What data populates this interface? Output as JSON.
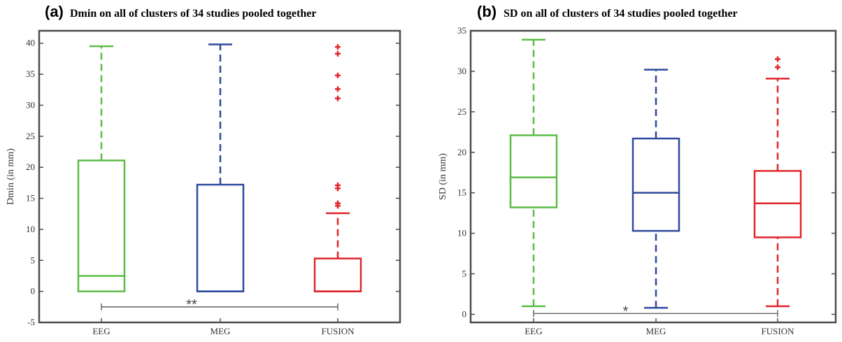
{
  "chart_data": [
    {
      "type": "box",
      "panel_letter": "(a)",
      "title": "Dmin on all of clusters of 34 studies pooled together",
      "xlabel": "",
      "ylabel": "Dmin (in mm)",
      "categories": [
        "EEG",
        "MEG",
        "FUSION"
      ],
      "ylim": [
        -5,
        42
      ],
      "yticks": [
        -5,
        0,
        5,
        10,
        15,
        20,
        25,
        30,
        35,
        40
      ],
      "boxes": [
        {
          "name": "EEG",
          "color": "#5BBD45",
          "whisker_low": 0,
          "q1": 0,
          "median": 2.5,
          "q3": 21.1,
          "whisker_high": 39.5,
          "outliers": []
        },
        {
          "name": "MEG",
          "color": "#2E4A9E",
          "whisker_low": 0,
          "q1": 0,
          "median": 0,
          "q3": 17.2,
          "whisker_high": 39.8,
          "outliers": []
        },
        {
          "name": "FUSION",
          "color": "#E0262B",
          "whisker_low": 0,
          "q1": 0,
          "median": 0,
          "q3": 5.3,
          "whisker_high": 12.6,
          "outliers": [
            13.8,
            14.2,
            16.6,
            17.1,
            31.1,
            32.6,
            34.8,
            38.3,
            39.4
          ]
        }
      ],
      "significance": {
        "from": "EEG",
        "to": "FUSION",
        "label": "**",
        "y": -2.5
      }
    },
    {
      "type": "box",
      "panel_letter": "(b)",
      "title": "SD on all of clusters of 34 studies pooled together",
      "xlabel": "",
      "ylabel": "SD (in mm)",
      "categories": [
        "EEG",
        "MEG",
        "FUSION"
      ],
      "ylim": [
        -1,
        35
      ],
      "yticks": [
        0,
        5,
        10,
        15,
        20,
        25,
        30,
        35
      ],
      "boxes": [
        {
          "name": "EEG",
          "color": "#5BBD45",
          "whisker_low": 1.0,
          "q1": 13.2,
          "median": 16.9,
          "q3": 22.1,
          "whisker_high": 33.9,
          "outliers": []
        },
        {
          "name": "MEG",
          "color": "#2E4A9E",
          "whisker_low": 0.8,
          "q1": 10.3,
          "median": 15.0,
          "q3": 21.7,
          "whisker_high": 30.2,
          "outliers": []
        },
        {
          "name": "FUSION",
          "color": "#E0262B",
          "whisker_low": 1.0,
          "q1": 9.5,
          "median": 13.7,
          "q3": 17.7,
          "whisker_high": 29.1,
          "outliers": [
            30.5,
            31.5
          ]
        }
      ],
      "significance": {
        "from": "EEG",
        "to": "FUSION",
        "label": "*",
        "y": 0.1
      }
    }
  ]
}
